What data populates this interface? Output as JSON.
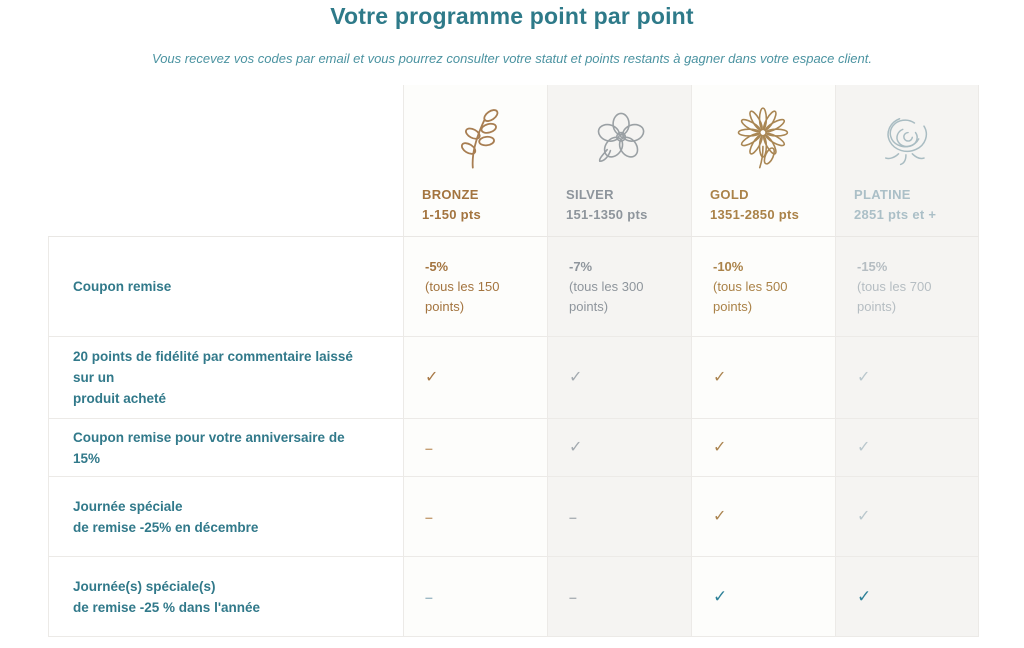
{
  "page": {
    "title": "Votre programme point par point",
    "subtitle": "Vous recevez vos codes par email et vous pourrez consulter votre statut et points restants à gagner dans votre espace client."
  },
  "colors": {
    "teal_heading": "#2e7a89",
    "teal_label": "#31798a",
    "bronze": "#a3743f",
    "silver": "#8e959c",
    "gold": "#aa8248",
    "platine": "#abbfc7",
    "teal_check": "#2e8198",
    "col_bg_white": "#fdfdfb",
    "col_bg_gray": "#f5f4f2"
  },
  "glyphs": {
    "check": "✓",
    "dash": "–"
  },
  "tiers": [
    {
      "id": "bronze",
      "name": "BRONZE",
      "range": "1-150 pts",
      "icon": "sprig-icon",
      "color": "#a3743f",
      "bg": "white"
    },
    {
      "id": "silver",
      "name": "SILVER",
      "range": "151-1350 pts",
      "icon": "flower-icon",
      "color": "#8e959c",
      "bg": "gray"
    },
    {
      "id": "gold",
      "name": "GOLD",
      "range": "1351-2850 pts",
      "icon": "daisy-icon",
      "color": "#aa8248",
      "bg": "white"
    },
    {
      "id": "platine",
      "name": "PLATINE",
      "range": "2851 pts et +",
      "icon": "rose-icon",
      "color": "#abbfc7",
      "bg": "gray"
    }
  ],
  "rows": [
    {
      "label": "Coupon remise",
      "cells": [
        {
          "type": "text",
          "strong": "-5%",
          "detail": "(tous les 150 points)",
          "color": "#a3743f"
        },
        {
          "type": "text",
          "strong": "-7%",
          "detail": "(tous les 300 points)",
          "color": "#8e959c"
        },
        {
          "type": "text",
          "strong": "-10%",
          "detail": "(tous les 500 points)",
          "color": "#aa8248"
        },
        {
          "type": "text",
          "strong": "-15%",
          "detail": "(tous les 700 points)",
          "color": "#b5bdc2"
        }
      ]
    },
    {
      "label": "20 points de fidélité par commentaire laissé sur un\nproduit acheté",
      "cells": [
        {
          "type": "check",
          "color": "#a87947"
        },
        {
          "type": "check",
          "color": "#a3aab0"
        },
        {
          "type": "check",
          "color": "#ab8450"
        },
        {
          "type": "check",
          "color": "#b9c7cd"
        }
      ]
    },
    {
      "label": "Coupon remise pour votre anniversaire de 15%",
      "cells": [
        {
          "type": "dash",
          "color": "#c59e73"
        },
        {
          "type": "check",
          "color": "#a3aab0"
        },
        {
          "type": "check",
          "color": "#ab8450"
        },
        {
          "type": "check",
          "color": "#b9c7cd"
        }
      ]
    },
    {
      "label": "Journée spéciale\nde remise -25% en décembre",
      "cells": [
        {
          "type": "dash",
          "color": "#c59e73"
        },
        {
          "type": "dash",
          "color": "#abb1b6"
        },
        {
          "type": "check",
          "color": "#ab8450"
        },
        {
          "type": "check",
          "color": "#b9c7cd"
        }
      ]
    },
    {
      "label": "Journée(s) spéciale(s)\nde remise -25 % dans l'année",
      "cells": [
        {
          "type": "dash",
          "color": "#9db9c5"
        },
        {
          "type": "dash",
          "color": "#abb1b6"
        },
        {
          "type": "check",
          "color": "#2e8198",
          "bold": true
        },
        {
          "type": "check",
          "color": "#2e8198",
          "bold": true
        }
      ]
    }
  ]
}
